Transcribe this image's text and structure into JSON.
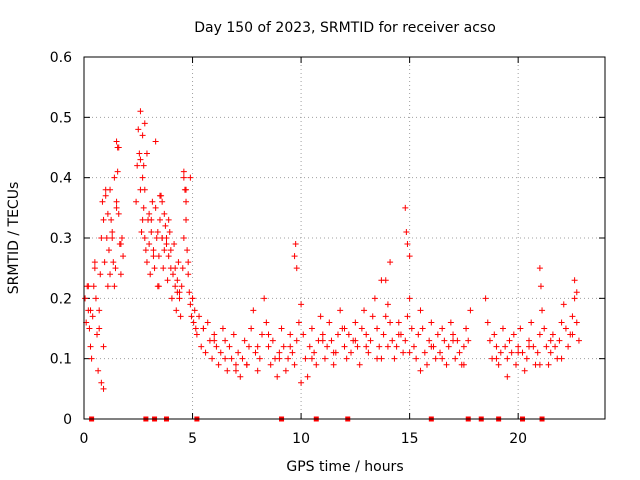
{
  "chart_data": {
    "type": "scatter",
    "title": "Day 150 of 2023, SRMTID for receiver acso",
    "xlabel": "GPS time / hours",
    "ylabel": "SRMTID / TECUs",
    "xlim": [
      0,
      24
    ],
    "ylim": [
      0,
      0.6
    ],
    "xticks": [
      0,
      5,
      10,
      15,
      20
    ],
    "yticks": [
      0,
      0.1,
      0.2,
      0.3,
      0.4,
      0.5,
      0.6
    ],
    "xtick_labels": [
      "0",
      "5",
      "10",
      "15",
      "20"
    ],
    "ytick_labels": [
      "0",
      "0.1",
      "0.2",
      "0.3",
      "0.4",
      "0.5",
      "0.6"
    ],
    "grid": true,
    "marker": "+",
    "color": "#ff0000",
    "series": [
      {
        "name": "SRMTID",
        "x": [
          0.05,
          0.1,
          0.15,
          0.2,
          0.25,
          0.3,
          0.35,
          0.4,
          0.45,
          0.5,
          0.55,
          0.6,
          0.65,
          0.7,
          0.75,
          0.8,
          0.85,
          0.9,
          0.95,
          1.0,
          1.05,
          1.1,
          1.15,
          1.2,
          1.25,
          1.3,
          1.35,
          1.4,
          1.45,
          1.5,
          1.55,
          1.6,
          1.65,
          1.7,
          1.75,
          1.8,
          2.4,
          2.45,
          2.5,
          2.55,
          2.6,
          2.65,
          2.7,
          2.75,
          2.8,
          2.85,
          2.9,
          2.95,
          3.0,
          3.05,
          3.1,
          3.15,
          3.2,
          3.25,
          3.3,
          3.35,
          3.4,
          3.45,
          3.5,
          3.55,
          3.6,
          3.65,
          3.7,
          3.75,
          3.8,
          3.85,
          3.9,
          3.95,
          4.0,
          4.05,
          4.1,
          4.15,
          4.2,
          4.25,
          4.3,
          4.35,
          4.4,
          4.45,
          4.5,
          4.55,
          4.6,
          4.65,
          4.7,
          4.75,
          4.8,
          4.85,
          4.9,
          4.95,
          5.0,
          5.05,
          5.1,
          5.15,
          5.2,
          5.3,
          5.4,
          5.5,
          5.6,
          5.7,
          5.8,
          5.9,
          6.0,
          6.1,
          6.2,
          6.3,
          6.4,
          6.5,
          6.6,
          6.7,
          6.8,
          6.9,
          7.0,
          7.1,
          7.2,
          7.3,
          7.4,
          7.5,
          7.6,
          7.7,
          7.8,
          7.9,
          8.0,
          8.1,
          8.2,
          8.3,
          8.4,
          8.5,
          8.6,
          8.7,
          8.8,
          8.9,
          9.0,
          9.1,
          9.2,
          9.3,
          9.4,
          9.5,
          9.6,
          9.7,
          9.8,
          9.9,
          10.0,
          10.1,
          10.2,
          10.3,
          10.4,
          10.5,
          10.6,
          10.7,
          10.8,
          10.9,
          11.0,
          11.1,
          11.2,
          11.3,
          11.4,
          11.5,
          11.6,
          11.7,
          11.8,
          11.9,
          12.0,
          12.1,
          12.2,
          12.3,
          12.4,
          12.5,
          12.6,
          12.7,
          12.8,
          12.9,
          13.0,
          13.1,
          13.2,
          13.3,
          13.4,
          13.5,
          13.6,
          13.7,
          13.8,
          13.9,
          14.0,
          14.1,
          14.2,
          14.3,
          14.4,
          14.5,
          14.6,
          14.7,
          14.8,
          14.9,
          15.0,
          15.1,
          15.2,
          15.3,
          15.4,
          15.5,
          15.6,
          15.7,
          15.8,
          15.9,
          16.0,
          16.1,
          16.2,
          16.3,
          16.4,
          16.5,
          16.6,
          16.7,
          16.8,
          16.9,
          17.0,
          17.1,
          17.2,
          17.3,
          17.4,
          17.5,
          17.6,
          17.7,
          17.8,
          18.5,
          18.6,
          18.7,
          18.8,
          18.9,
          19.0,
          19.1,
          19.2,
          19.3,
          19.4,
          19.5,
          19.6,
          19.7,
          19.8,
          19.9,
          20.0,
          20.1,
          20.2,
          20.3,
          20.4,
          20.5,
          20.6,
          20.7,
          20.8,
          20.9,
          21.0,
          21.1,
          21.2,
          21.3,
          21.4,
          21.5,
          21.6,
          21.7,
          21.8,
          21.9,
          22.0,
          22.1,
          22.2,
          22.3,
          22.4,
          22.5,
          22.6,
          22.7,
          22.8,
          0.2,
          0.3,
          0.5,
          0.7,
          0.9,
          1.1,
          1.3,
          1.5,
          1.7,
          2.6,
          2.8,
          3.0,
          3.2,
          3.4,
          3.6,
          3.8,
          4.0,
          4.2,
          4.4,
          4.6,
          4.8,
          5.0,
          5.5,
          6.0,
          6.5,
          7.0,
          7.5,
          8.0,
          8.5,
          9.0,
          9.5,
          10.0,
          10.5,
          11.0,
          11.5,
          12.0,
          12.5,
          13.0,
          13.5,
          14.0,
          14.5,
          15.0,
          15.5,
          16.0,
          16.5,
          17.0,
          17.5,
          19.0,
          19.5,
          20.0,
          20.5,
          21.0,
          21.5,
          22.0,
          22.5,
          0.8,
          1.2,
          1.6,
          2.7,
          3.1,
          3.5,
          3.9,
          4.3,
          4.7,
          9.7,
          9.75,
          9.8,
          13.7,
          13.9,
          14.1,
          14.8,
          14.85,
          14.9,
          15.0,
          21.0,
          21.05,
          22.6,
          22.7,
          0.9,
          1.0,
          1.4,
          1.5,
          2.6,
          2.7,
          2.9,
          3.3,
          3.6,
          3.7,
          4.6,
          4.7,
          4.9,
          2.75,
          2.8,
          1.55,
          3.45
        ],
        "y": [
          0.2,
          0.16,
          0.22,
          0.18,
          0.15,
          0.12,
          0.1,
          0.17,
          0.22,
          0.25,
          0.2,
          0.14,
          0.08,
          0.18,
          0.24,
          0.3,
          0.36,
          0.33,
          0.26,
          0.38,
          0.3,
          0.34,
          0.28,
          0.24,
          0.33,
          0.31,
          0.26,
          0.22,
          0.25,
          0.36,
          0.41,
          0.34,
          0.29,
          0.24,
          0.3,
          0.27,
          0.36,
          0.42,
          0.48,
          0.44,
          0.38,
          0.31,
          0.4,
          0.35,
          0.3,
          0.28,
          0.26,
          0.33,
          0.29,
          0.24,
          0.31,
          0.36,
          0.28,
          0.25,
          0.35,
          0.3,
          0.22,
          0.27,
          0.33,
          0.37,
          0.3,
          0.25,
          0.28,
          0.32,
          0.29,
          0.23,
          0.27,
          0.31,
          0.25,
          0.2,
          0.24,
          0.29,
          0.22,
          0.18,
          0.21,
          0.26,
          0.2,
          0.17,
          0.22,
          0.25,
          0.4,
          0.38,
          0.33,
          0.28,
          0.24,
          0.21,
          0.19,
          0.17,
          0.2,
          0.16,
          0.18,
          0.15,
          0.14,
          0.17,
          0.12,
          0.15,
          0.11,
          0.16,
          0.13,
          0.1,
          0.14,
          0.12,
          0.09,
          0.11,
          0.15,
          0.13,
          0.08,
          0.12,
          0.1,
          0.14,
          0.09,
          0.11,
          0.07,
          0.1,
          0.13,
          0.09,
          0.12,
          0.15,
          0.18,
          0.11,
          0.08,
          0.1,
          0.14,
          0.2,
          0.16,
          0.12,
          0.09,
          0.13,
          0.1,
          0.07,
          0.11,
          0.15,
          0.12,
          0.08,
          0.1,
          0.14,
          0.11,
          0.09,
          0.13,
          0.16,
          0.19,
          0.14,
          0.1,
          0.07,
          0.12,
          0.15,
          0.11,
          0.09,
          0.13,
          0.17,
          0.14,
          0.1,
          0.12,
          0.16,
          0.13,
          0.09,
          0.11,
          0.14,
          0.18,
          0.15,
          0.12,
          0.1,
          0.14,
          0.11,
          0.13,
          0.16,
          0.12,
          0.09,
          0.15,
          0.18,
          0.14,
          0.11,
          0.13,
          0.17,
          0.2,
          0.15,
          0.12,
          0.1,
          0.14,
          0.17,
          0.19,
          0.16,
          0.13,
          0.1,
          0.12,
          0.16,
          0.14,
          0.11,
          0.13,
          0.17,
          0.2,
          0.15,
          0.12,
          0.1,
          0.14,
          0.18,
          0.15,
          0.11,
          0.09,
          0.13,
          0.16,
          0.12,
          0.1,
          0.14,
          0.11,
          0.15,
          0.13,
          0.09,
          0.12,
          0.16,
          0.14,
          0.1,
          0.13,
          0.11,
          0.09,
          0.12,
          0.15,
          0.13,
          0.18,
          0.2,
          0.16,
          0.13,
          0.1,
          0.14,
          0.12,
          0.09,
          0.11,
          0.15,
          0.12,
          0.1,
          0.13,
          0.11,
          0.14,
          0.09,
          0.12,
          0.15,
          0.11,
          0.08,
          0.1,
          0.13,
          0.16,
          0.12,
          0.09,
          0.11,
          0.14,
          0.18,
          0.15,
          0.12,
          0.09,
          0.11,
          0.14,
          0.12,
          0.1,
          0.13,
          0.16,
          0.19,
          0.15,
          0.12,
          0.14,
          0.17,
          0.2,
          0.16,
          0.13,
          0.22,
          0.18,
          0.26,
          0.15,
          0.12,
          0.22,
          0.3,
          0.35,
          0.29,
          0.43,
          0.38,
          0.34,
          0.27,
          0.31,
          0.36,
          0.3,
          0.28,
          0.25,
          0.21,
          0.3,
          0.26,
          0.2,
          0.15,
          0.13,
          0.1,
          0.08,
          0.09,
          0.12,
          0.14,
          0.1,
          0.12,
          0.06,
          0.1,
          0.13,
          0.11,
          0.15,
          0.13,
          0.12,
          0.1,
          0.12,
          0.14,
          0.11,
          0.08,
          0.12,
          0.1,
          0.13,
          0.09,
          0.1,
          0.07,
          0.11,
          0.12,
          0.09,
          0.13,
          0.1,
          0.14,
          0.06,
          0.38,
          0.45,
          0.33,
          0.33,
          0.37,
          0.33,
          0.23,
          0.36,
          0.27,
          0.29,
          0.25,
          0.23,
          0.23,
          0.26,
          0.35,
          0.31,
          0.29,
          0.27,
          0.25,
          0.22,
          0.23,
          0.21,
          0.05,
          0.37,
          0.4,
          0.46,
          0.51,
          0.47,
          0.44,
          0.46,
          0.3,
          0.34,
          0.41,
          0.38,
          0.4,
          0.42,
          0.49,
          0.45,
          0.22
        ]
      }
    ],
    "bottom_markers_x": [
      0.35,
      2.85,
      3.8,
      5.2,
      3.25,
      9.1,
      10.7,
      12.15,
      16.0,
      17.7,
      18.3,
      19.1,
      20.2,
      21.1
    ]
  }
}
